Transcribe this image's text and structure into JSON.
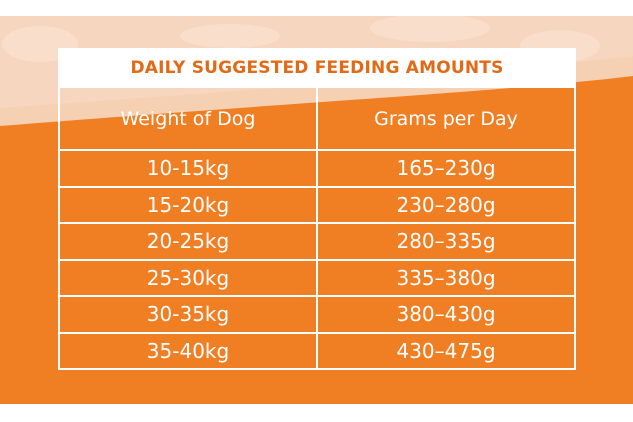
{
  "table": {
    "title": "DAILY SUGGESTED FEEDING AMOUNTS",
    "headers": [
      "Weight of Dog",
      "Grams per Day"
    ],
    "rows": [
      [
        "10-15kg",
        "165–230g"
      ],
      [
        "15-20kg",
        "230–280g"
      ],
      [
        "20-25kg",
        "280–335g"
      ],
      [
        "25-30kg",
        "335–380g"
      ],
      [
        "30-35kg",
        "380–430g"
      ],
      [
        "35-40kg",
        "430–475g"
      ]
    ]
  },
  "colors": {
    "background_orange": "#f07f24",
    "title_text": "#e26a16",
    "cell_text": "#ffffff",
    "grid_lines": "#ffffff"
  }
}
